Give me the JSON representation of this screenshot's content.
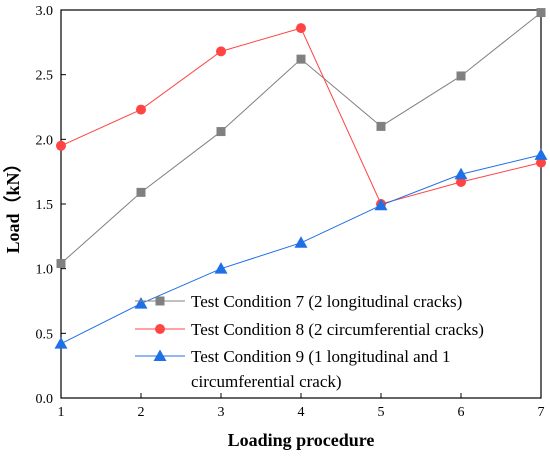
{
  "chart_data": {
    "type": "line",
    "xlabel": "Loading procedure",
    "ylabel": "Load（kN）",
    "xlim": [
      1,
      7
    ],
    "ylim": [
      0.0,
      3.0
    ],
    "x_ticks": [
      "1",
      "2",
      "3",
      "4",
      "5",
      "6",
      "7"
    ],
    "y_ticks": [
      "0.0",
      "0.5",
      "1.0",
      "1.5",
      "2.0",
      "2.5",
      "3.0"
    ],
    "grid": false,
    "legend_placement": "bottom-right",
    "x": [
      1,
      2,
      3,
      4,
      5,
      6,
      7
    ],
    "series": [
      {
        "name": "Test Condition 7 (2 longitudinal cracks)",
        "legend_lines": [
          "Test Condition 7 (2 longitudinal cracks)"
        ],
        "values": [
          1.04,
          1.59,
          2.06,
          2.62,
          2.1,
          2.49,
          2.98
        ],
        "color": "#808080",
        "marker": "square"
      },
      {
        "name": "Test Condition 8 (2 circumferential cracks)",
        "legend_lines": [
          "Test Condition 8 (2 circumferential cracks)"
        ],
        "values": [
          1.95,
          2.23,
          2.68,
          2.86,
          1.5,
          1.67,
          1.82
        ],
        "color": "#ff4444",
        "marker": "circle"
      },
      {
        "name": "Test Condition 9 (1 longitudinal and 1 circumferential crack)",
        "legend_lines": [
          "Test Condition 9 (1 longitudinal and 1",
          "circumferential crack)"
        ],
        "values": [
          0.42,
          0.73,
          1.0,
          1.2,
          1.49,
          1.73,
          1.88
        ],
        "color": "#1f6fe6",
        "marker": "triangle"
      }
    ]
  }
}
